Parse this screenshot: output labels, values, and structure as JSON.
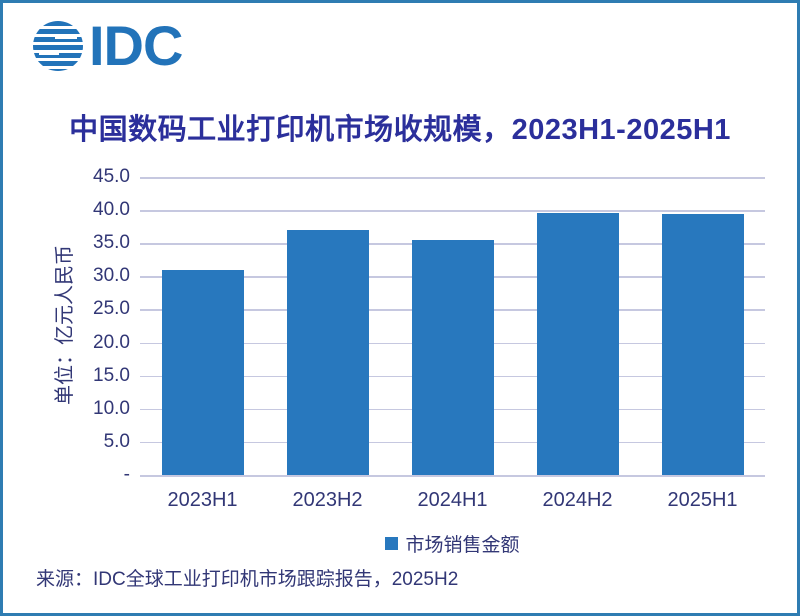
{
  "logo": {
    "text": "IDC"
  },
  "page": {
    "source_line": "来源：IDC全球工业打印机市场跟踪报告，2025H2"
  },
  "colors": {
    "bar": "#2878be",
    "grid": "#c6c8e0",
    "title_text": "#2b2f9b",
    "axis_text": "#323776",
    "page_border": "#2e7cb2",
    "logo_blue": "#2273b9"
  },
  "chart_data": {
    "type": "bar",
    "title": "中国数码工业打印机市场收规模，2023H1-2025H1",
    "categories": [
      "2023H1",
      "2023H2",
      "2024H1",
      "2024H2",
      "2025H1"
    ],
    "values": [
      31.0,
      37.0,
      35.5,
      39.6,
      39.4
    ],
    "xlabel": "",
    "ylabel": "单位：亿元人民币",
    "ylim": [
      0,
      45
    ],
    "ytick_step": 5,
    "ytick_labels_top_to_bottom": [
      "45.0",
      "40.0",
      "35.0",
      "30.0",
      "25.0",
      "20.0",
      "15.0",
      "10.0",
      "5.0",
      "-"
    ],
    "grid": true,
    "legend_position": "bottom",
    "legend": [
      {
        "label": "市场销售金额",
        "color": "#2878be"
      }
    ]
  }
}
